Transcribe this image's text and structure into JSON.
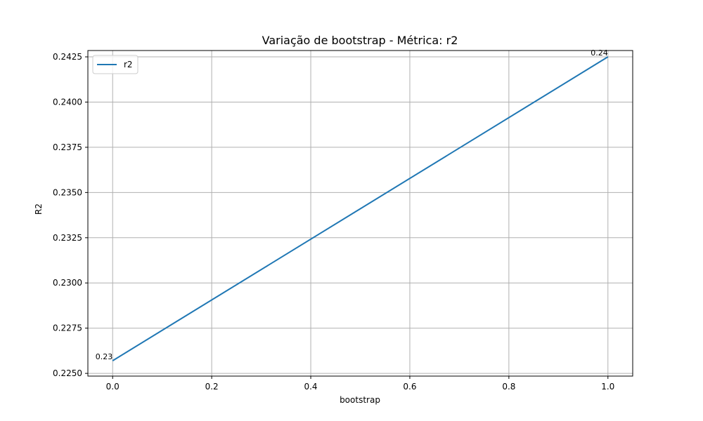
{
  "chart_data": {
    "type": "line",
    "title": "Variação de bootstrap - Métrica: r2",
    "xlabel": "bootstrap",
    "ylabel": "R2",
    "xlim": [
      -0.05,
      1.05
    ],
    "ylim": [
      0.22485,
      0.24285
    ],
    "xticks": [
      0.0,
      0.2,
      0.4,
      0.6,
      0.8,
      1.0
    ],
    "xtick_labels": [
      "0.0",
      "0.2",
      "0.4",
      "0.6",
      "0.8",
      "1.0"
    ],
    "yticks": [
      0.225,
      0.2275,
      0.23,
      0.2325,
      0.235,
      0.2375,
      0.24,
      0.2425
    ],
    "ytick_labels": [
      "0.2250",
      "0.2275",
      "0.2300",
      "0.2325",
      "0.2350",
      "0.2375",
      "0.2400",
      "0.2425"
    ],
    "grid": true,
    "legend_position": "top-left",
    "series": [
      {
        "name": "r2",
        "color": "#1f77b4",
        "x": [
          0,
          1
        ],
        "y": [
          0.2257,
          0.2425
        ],
        "data_labels": [
          "0.23",
          "0.24"
        ]
      }
    ]
  }
}
